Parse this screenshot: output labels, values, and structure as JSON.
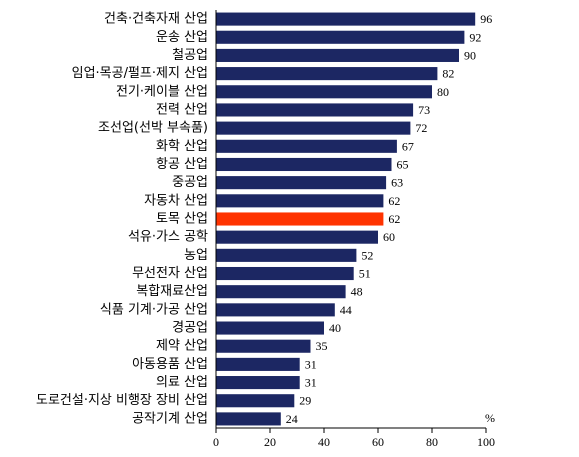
{
  "chart_data": {
    "type": "bar",
    "orientation": "horizontal",
    "categories": [
      "건축·건축자재 산업",
      "운송 산업",
      "철공업",
      "임업·목공/펄프·제지 산업",
      "전기·케이블 산업",
      "전력 산업",
      "조선업(선박 부속품)",
      "화학 산업",
      "항공 산업",
      "중공업",
      "자동차 산업",
      "토목 산업",
      "석유·가스 공학",
      "농업",
      "무선전자 산업",
      "복합재료산업",
      "식품 기계·가공 산업",
      "경공업",
      "제약 산업",
      "아동용품 산업",
      "의료 산업",
      "도로건설·지상 비행장 장비 산업",
      "공작기계 산업"
    ],
    "values": [
      96,
      92,
      90,
      82,
      80,
      73,
      72,
      67,
      65,
      63,
      62,
      62,
      60,
      52,
      51,
      48,
      44,
      40,
      35,
      31,
      31,
      29,
      24
    ],
    "xlim": [
      0,
      100
    ],
    "xticks": [
      0,
      20,
      40,
      60,
      80,
      100
    ],
    "unit": "%",
    "highlight_category": "토목 산업",
    "colors": {
      "bar": "#1c2763",
      "highlight": "#ff3300",
      "axis": "#000000"
    },
    "grid": false,
    "legend": "none"
  }
}
